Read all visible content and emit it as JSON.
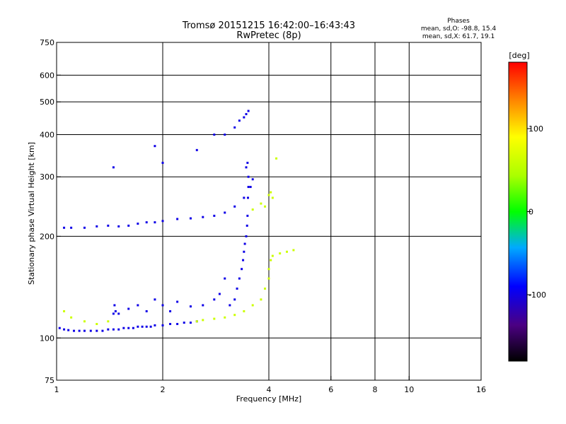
{
  "chart_data": {
    "type": "scatter",
    "title": "Tromsø 20151215 16:42:00–16:43:43",
    "subtitle": "RwPretec (8p)",
    "xlabel": "Frequency [MHz]",
    "ylabel": "Stationary phase Virtual Height [km]",
    "x_scale": "log",
    "y_scale": "log",
    "xlim": [
      1,
      16
    ],
    "ylim": [
      75,
      750
    ],
    "x_ticks": [
      1,
      2,
      4,
      6,
      8,
      10,
      16
    ],
    "x_tick_labels": [
      "1",
      "2",
      "4",
      "6",
      "8",
      "10",
      "16"
    ],
    "x_gridlines": [
      2,
      4,
      6,
      8,
      10
    ],
    "y_ticks": [
      75,
      100,
      200,
      300,
      400,
      500,
      600,
      750
    ],
    "y_tick_labels": [
      "75",
      "100",
      "200",
      "300",
      "400",
      "500",
      "600",
      "750"
    ],
    "y_gridlines": [
      100,
      200,
      300,
      400,
      500,
      600
    ],
    "grid": true,
    "legend_title": "Phases",
    "legend_lines": [
      "mean, sd,O:  -98.8, 15.4",
      "mean, sd,X:   61.7, 19.1"
    ],
    "colorbar": {
      "label": "[deg]",
      "range": [
        -180,
        180
      ],
      "ticks": [
        100,
        0,
        -100
      ],
      "tick_labels": [
        "100",
        "0",
        "-100"
      ],
      "placement": "right"
    },
    "series": [
      {
        "mode": "O",
        "mean_phase": -98.8,
        "points": [
          [
            1.02,
            107
          ],
          [
            1.05,
            106
          ],
          [
            1.08,
            105.5
          ],
          [
            1.12,
            105
          ],
          [
            1.16,
            105
          ],
          [
            1.2,
            105
          ],
          [
            1.25,
            105
          ],
          [
            1.3,
            105
          ],
          [
            1.35,
            105
          ],
          [
            1.4,
            106
          ],
          [
            1.45,
            106
          ],
          [
            1.5,
            106
          ],
          [
            1.55,
            107
          ],
          [
            1.6,
            107
          ],
          [
            1.65,
            107
          ],
          [
            1.7,
            108
          ],
          [
            1.75,
            108
          ],
          [
            1.8,
            108
          ],
          [
            1.85,
            108
          ],
          [
            1.9,
            109
          ],
          [
            2.0,
            109
          ],
          [
            2.1,
            110
          ],
          [
            2.2,
            110
          ],
          [
            2.3,
            111
          ],
          [
            2.4,
            111
          ],
          [
            2.5,
            112
          ],
          [
            1.45,
            118
          ],
          [
            1.46,
            125
          ],
          [
            1.47,
            120
          ],
          [
            1.5,
            118
          ],
          [
            1.6,
            122
          ],
          [
            1.7,
            125
          ],
          [
            1.8,
            120
          ],
          [
            1.9,
            130
          ],
          [
            2.0,
            125
          ],
          [
            2.1,
            120
          ],
          [
            2.2,
            128
          ],
          [
            2.4,
            124
          ],
          [
            2.6,
            125
          ],
          [
            2.8,
            130
          ],
          [
            2.9,
            135
          ],
          [
            3.0,
            150
          ],
          [
            3.1,
            125
          ],
          [
            3.2,
            130
          ],
          [
            3.25,
            140
          ],
          [
            3.3,
            150
          ],
          [
            3.35,
            160
          ],
          [
            3.38,
            170
          ],
          [
            3.4,
            180
          ],
          [
            3.42,
            190
          ],
          [
            3.45,
            200
          ],
          [
            3.47,
            215
          ],
          [
            3.48,
            230
          ],
          [
            3.49,
            260
          ],
          [
            3.5,
            280
          ],
          [
            3.5,
            300
          ],
          [
            3.48,
            330
          ],
          [
            3.45,
            320
          ],
          [
            1.05,
            212
          ],
          [
            1.1,
            212
          ],
          [
            1.2,
            212
          ],
          [
            1.3,
            214
          ],
          [
            1.4,
            215
          ],
          [
            1.5,
            214
          ],
          [
            1.6,
            215
          ],
          [
            1.7,
            218
          ],
          [
            1.8,
            220
          ],
          [
            1.9,
            220
          ],
          [
            2.0,
            222
          ],
          [
            2.2,
            225
          ],
          [
            2.4,
            226
          ],
          [
            2.6,
            228
          ],
          [
            2.8,
            230
          ],
          [
            3.0,
            235
          ],
          [
            3.2,
            245
          ],
          [
            3.4,
            260
          ],
          [
            3.55,
            280
          ],
          [
            3.6,
            295
          ],
          [
            3.0,
            400
          ],
          [
            3.2,
            420
          ],
          [
            3.3,
            440
          ],
          [
            3.4,
            450
          ],
          [
            3.45,
            460
          ],
          [
            3.5,
            470
          ],
          [
            1.45,
            320
          ],
          [
            1.9,
            370
          ],
          [
            2.0,
            330
          ],
          [
            2.5,
            360
          ],
          [
            2.8,
            400
          ]
        ]
      },
      {
        "mode": "X",
        "mean_phase": 61.7,
        "points": [
          [
            2.5,
            112
          ],
          [
            2.6,
            113
          ],
          [
            2.8,
            114
          ],
          [
            3.0,
            115
          ],
          [
            3.2,
            117
          ],
          [
            3.4,
            120
          ],
          [
            3.6,
            125
          ],
          [
            3.8,
            130
          ],
          [
            3.9,
            140
          ],
          [
            4.0,
            150
          ],
          [
            4.0,
            160
          ],
          [
            4.05,
            170
          ],
          [
            4.1,
            175
          ],
          [
            4.3,
            178
          ],
          [
            4.5,
            180
          ],
          [
            4.7,
            182
          ],
          [
            1.05,
            120
          ],
          [
            1.1,
            115
          ],
          [
            1.2,
            112
          ],
          [
            1.3,
            110
          ],
          [
            1.4,
            112
          ],
          [
            3.6,
            240
          ],
          [
            3.8,
            250
          ],
          [
            4.0,
            265
          ],
          [
            4.05,
            270
          ],
          [
            4.1,
            260
          ],
          [
            3.9,
            245
          ],
          [
            4.2,
            340
          ]
        ]
      }
    ]
  }
}
